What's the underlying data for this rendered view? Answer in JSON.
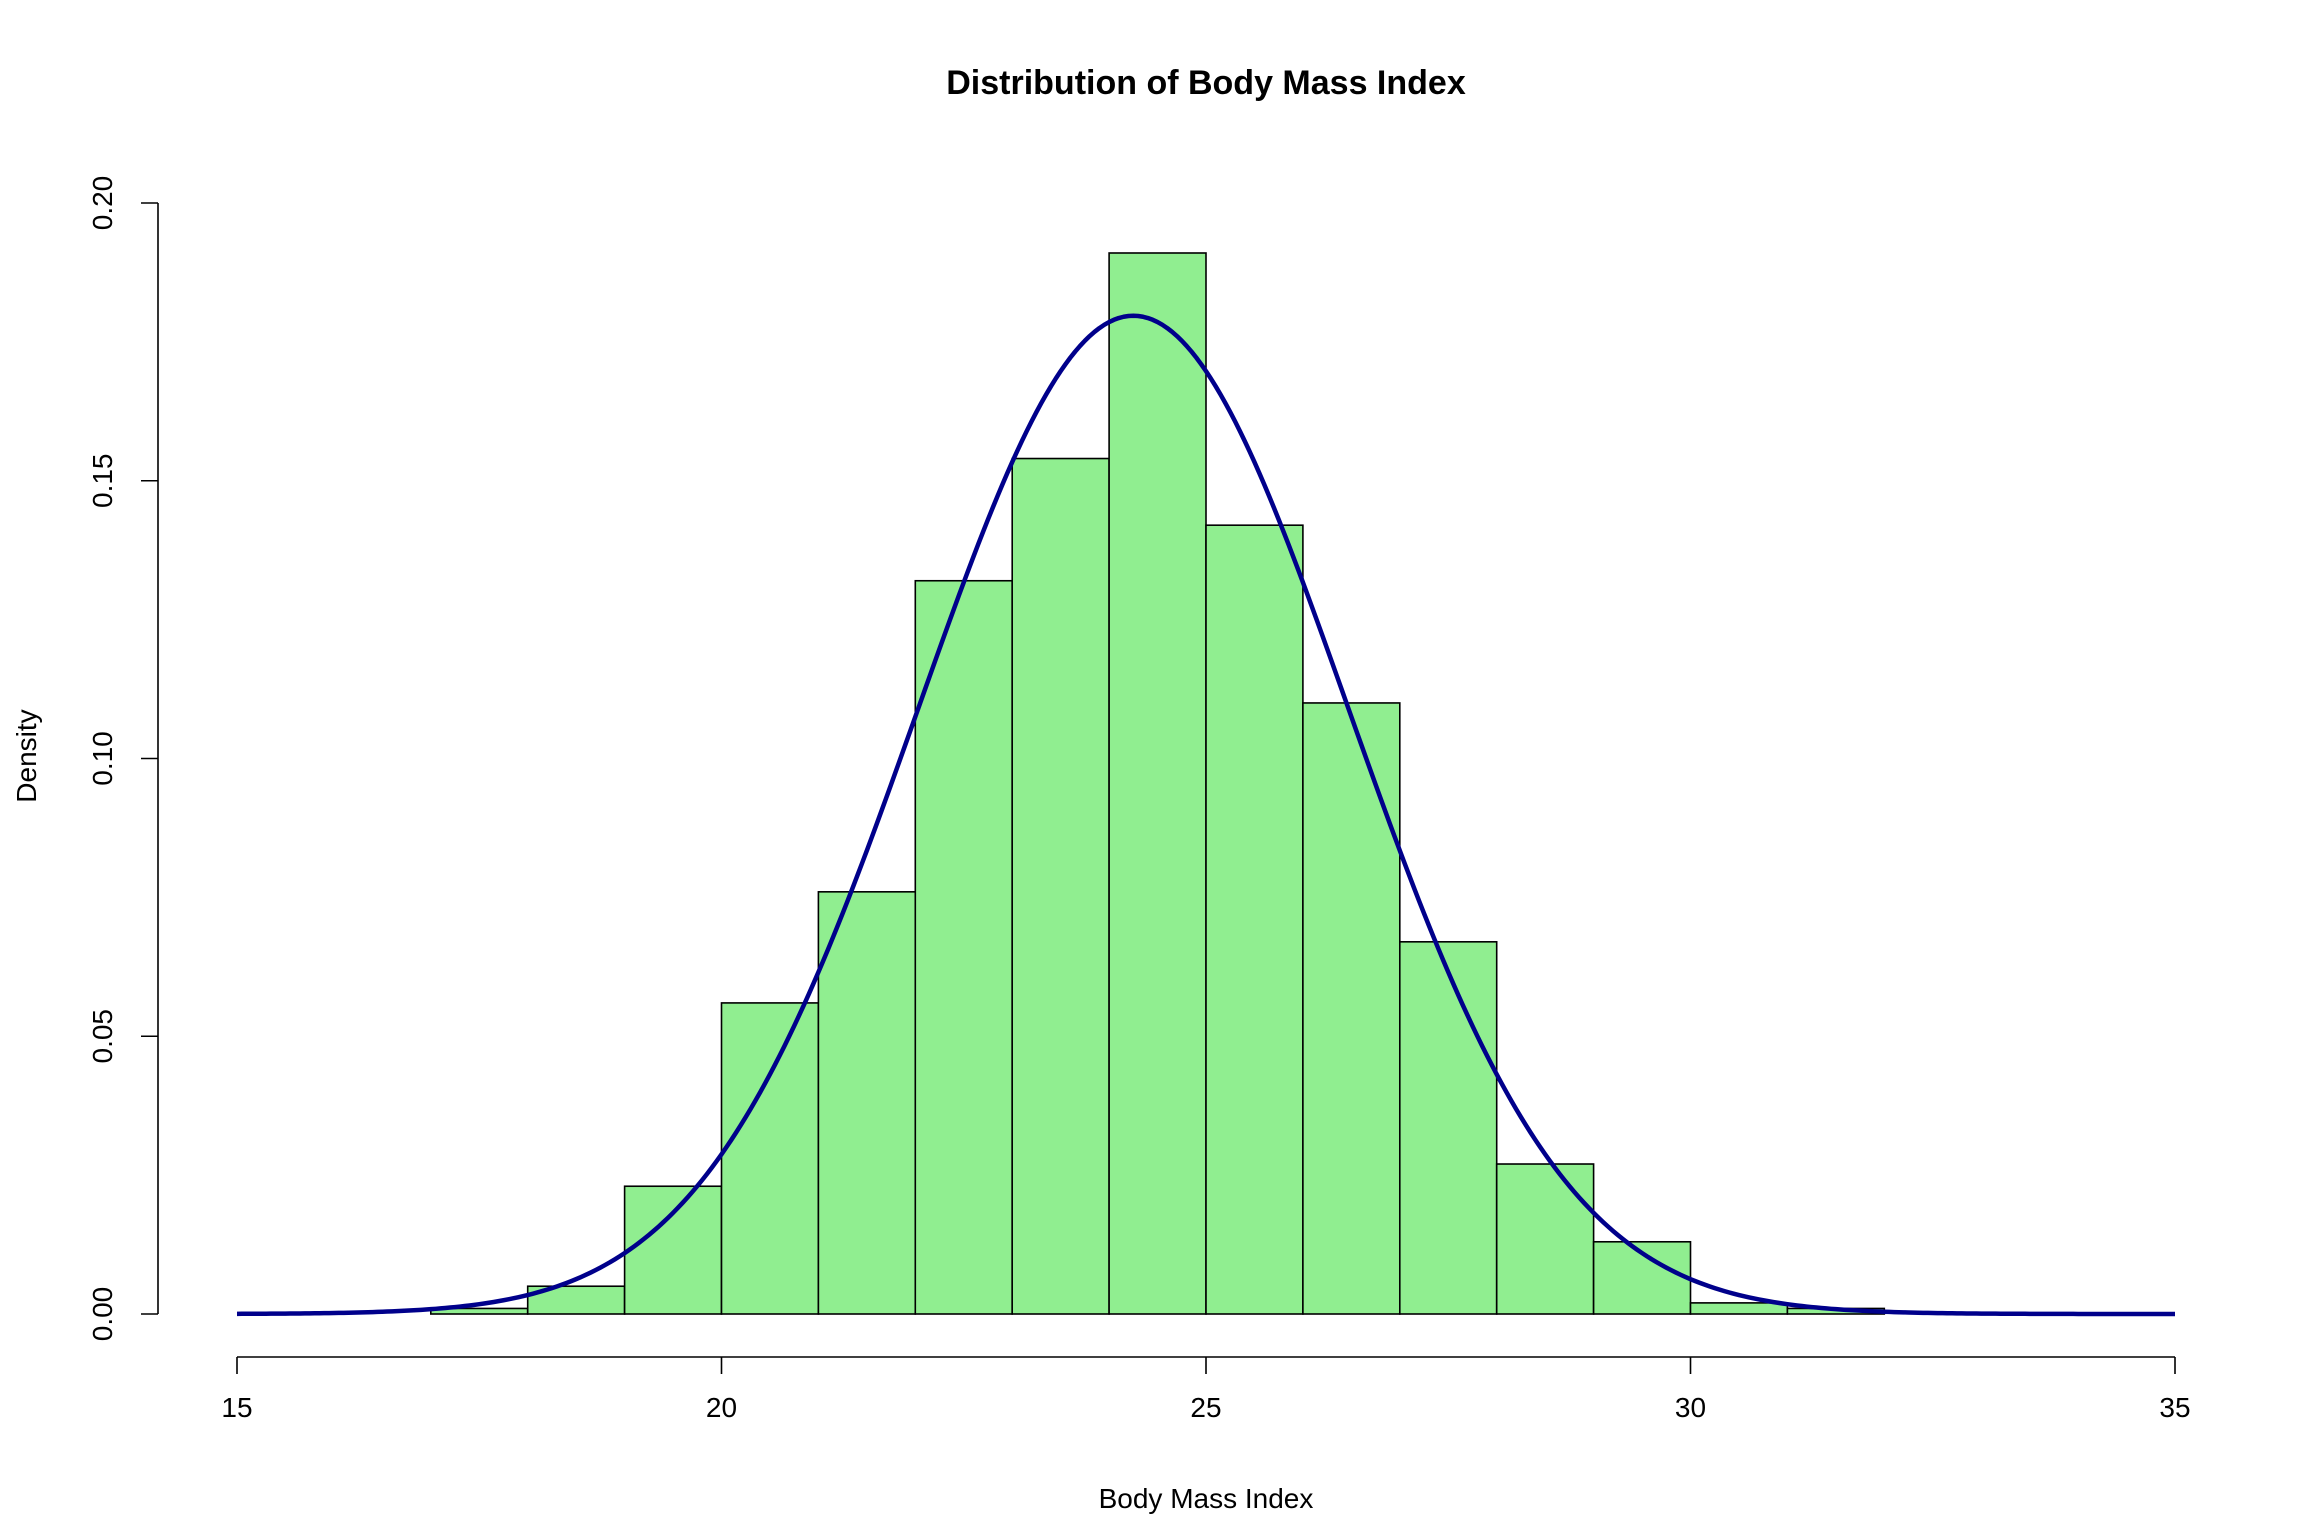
{
  "chart_data": {
    "type": "bar",
    "title": "Distribution of Body Mass Index",
    "xlabel": "Body Mass Index",
    "ylabel": "Density",
    "xlim": [
      15,
      35
    ],
    "ylim": [
      0,
      0.2
    ],
    "x_ticks": [
      "15",
      "20",
      "25",
      "30",
      "35"
    ],
    "y_ticks": [
      "0.00",
      "0.05",
      "0.10",
      "0.15",
      "0.20"
    ],
    "bins": [
      {
        "x0": 17,
        "x1": 18,
        "value": 0.001
      },
      {
        "x0": 18,
        "x1": 19,
        "value": 0.005
      },
      {
        "x0": 19,
        "x1": 20,
        "value": 0.023
      },
      {
        "x0": 20,
        "x1": 21,
        "value": 0.056
      },
      {
        "x0": 21,
        "x1": 22,
        "value": 0.076
      },
      {
        "x0": 22,
        "x1": 23,
        "value": 0.132
      },
      {
        "x0": 23,
        "x1": 24,
        "value": 0.154
      },
      {
        "x0": 24,
        "x1": 25,
        "value": 0.191
      },
      {
        "x0": 25,
        "x1": 26,
        "value": 0.142
      },
      {
        "x0": 26,
        "x1": 27,
        "value": 0.11
      },
      {
        "x0": 27,
        "x1": 28,
        "value": 0.067
      },
      {
        "x0": 28,
        "x1": 29,
        "value": 0.027
      },
      {
        "x0": 29,
        "x1": 30,
        "value": 0.013
      },
      {
        "x0": 30,
        "x1": 31,
        "value": 0.002
      },
      {
        "x0": 31,
        "x1": 32,
        "value": 0.001
      }
    ],
    "density_curve": {
      "kind": "normal",
      "mean": 24.25,
      "sd": 2.22,
      "x_range": [
        15,
        35
      ]
    },
    "colors": {
      "bar_fill": "#90EE90",
      "bar_stroke": "#000000",
      "curve": "#00008B",
      "axis": "#000000"
    }
  }
}
